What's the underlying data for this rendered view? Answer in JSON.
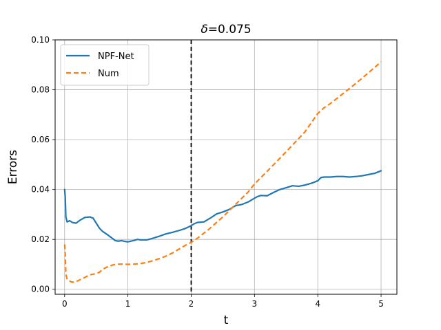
{
  "chart_data": {
    "type": "line",
    "title_symbol": "δ",
    "title_value": "=0.075",
    "xlabel": "t",
    "ylabel": "Errors",
    "xlim": [
      -0.15,
      5.25
    ],
    "ylim": [
      -0.002,
      0.1
    ],
    "xticks": [
      0,
      1,
      2,
      3,
      4,
      5
    ],
    "xtick_labels": [
      "0",
      "1",
      "2",
      "3",
      "4",
      "5"
    ],
    "yticks": [
      0.0,
      0.02,
      0.04,
      0.06,
      0.08,
      0.1
    ],
    "ytick_labels": [
      "0.00",
      "0.02",
      "0.04",
      "0.06",
      "0.08",
      "0.10"
    ],
    "grid": true,
    "legend_position": "top-left",
    "vline": {
      "x": 2,
      "color": "#000000",
      "style": "dashed"
    },
    "series": [
      {
        "name": "NPF-Net",
        "color": "#1f77b4",
        "style": "solid",
        "x": [
          0,
          0.01,
          0.02,
          0.04,
          0.08,
          0.12,
          0.18,
          0.25,
          0.32,
          0.4,
          0.45,
          0.5,
          0.55,
          0.6,
          0.67,
          0.75,
          0.8,
          0.85,
          0.9,
          0.95,
          1.0,
          1.05,
          1.1,
          1.15,
          1.2,
          1.3,
          1.4,
          1.5,
          1.6,
          1.7,
          1.8,
          1.9,
          2.0,
          2.05,
          2.1,
          2.2,
          2.3,
          2.4,
          2.5,
          2.6,
          2.7,
          2.8,
          2.9,
          3.0,
          3.05,
          3.1,
          3.2,
          3.3,
          3.4,
          3.5,
          3.6,
          3.7,
          3.8,
          3.9,
          4.0,
          4.05,
          4.1,
          4.2,
          4.3,
          4.4,
          4.5,
          4.6,
          4.7,
          4.8,
          4.9,
          5.0
        ],
        "y": [
          0.04,
          0.037,
          0.029,
          0.027,
          0.0275,
          0.0268,
          0.0265,
          0.0278,
          0.0288,
          0.029,
          0.0285,
          0.0265,
          0.0245,
          0.0232,
          0.022,
          0.0205,
          0.0195,
          0.0193,
          0.0195,
          0.0192,
          0.019,
          0.0193,
          0.0196,
          0.02,
          0.0198,
          0.0198,
          0.0205,
          0.0213,
          0.0222,
          0.0228,
          0.0235,
          0.0243,
          0.0255,
          0.0263,
          0.0268,
          0.027,
          0.0285,
          0.0302,
          0.031,
          0.032,
          0.0335,
          0.034,
          0.035,
          0.0365,
          0.0372,
          0.0376,
          0.0375,
          0.0388,
          0.04,
          0.0407,
          0.0415,
          0.0413,
          0.0418,
          0.0425,
          0.0435,
          0.0448,
          0.045,
          0.045,
          0.0452,
          0.0452,
          0.045,
          0.0452,
          0.0455,
          0.046,
          0.0465,
          0.0475
        ]
      },
      {
        "name": "Num",
        "color": "#ff7f0e",
        "style": "dashed",
        "x": [
          0,
          0.01,
          0.02,
          0.04,
          0.07,
          0.1,
          0.15,
          0.2,
          0.3,
          0.4,
          0.5,
          0.55,
          0.6,
          0.7,
          0.8,
          0.9,
          1.0,
          1.1,
          1.2,
          1.3,
          1.4,
          1.5,
          1.6,
          1.7,
          1.8,
          1.9,
          2.0,
          2.1,
          2.2,
          2.3,
          2.4,
          2.5,
          2.6,
          2.7,
          2.8,
          2.9,
          3.0,
          3.2,
          3.4,
          3.6,
          3.8,
          4.0,
          4.1,
          4.2,
          4.4,
          4.6,
          4.8,
          5.0
        ],
        "y": [
          0.018,
          0.014,
          0.006,
          0.004,
          0.0035,
          0.003,
          0.0028,
          0.0033,
          0.0045,
          0.0058,
          0.0063,
          0.0068,
          0.008,
          0.0093,
          0.01,
          0.0101,
          0.01,
          0.0101,
          0.0103,
          0.0108,
          0.0115,
          0.0123,
          0.0133,
          0.0145,
          0.016,
          0.0175,
          0.0188,
          0.0205,
          0.0225,
          0.0245,
          0.0268,
          0.029,
          0.0315,
          0.034,
          0.0365,
          0.039,
          0.0422,
          0.0473,
          0.0525,
          0.0578,
          0.0632,
          0.0705,
          0.0728,
          0.0745,
          0.0785,
          0.0825,
          0.0868,
          0.0912
        ]
      }
    ]
  }
}
